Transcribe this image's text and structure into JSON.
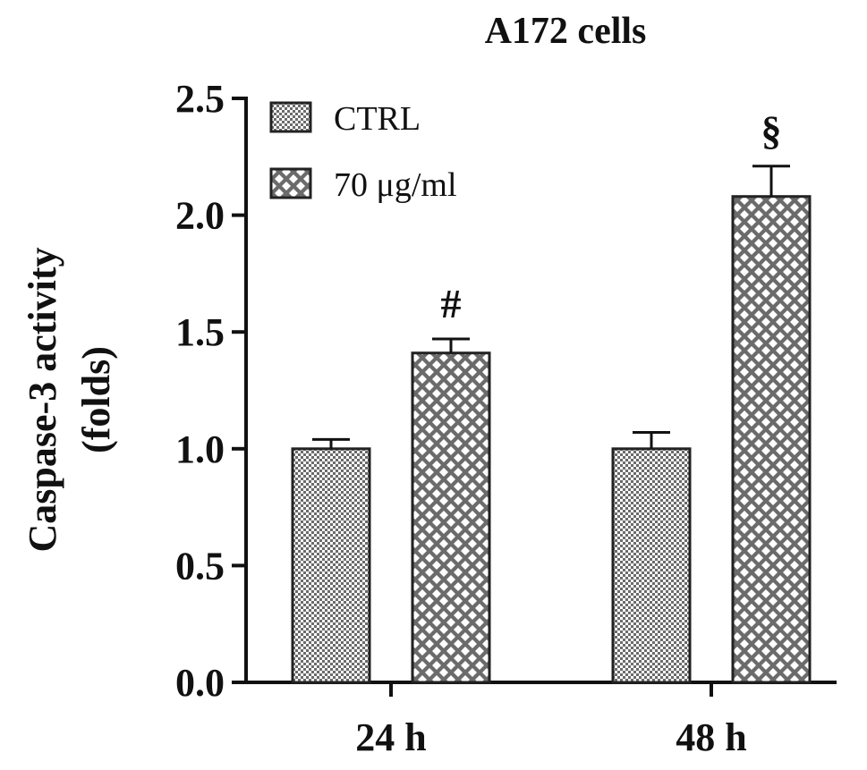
{
  "chart_data": {
    "type": "bar",
    "title": "A172 cells",
    "xlabel": "",
    "ylabel_lines": [
      "Caspase-3 activity",
      "(folds)"
    ],
    "categories": [
      "24 h",
      "48 h"
    ],
    "ylim": [
      0,
      2.5
    ],
    "yticks": [
      "0.0",
      "0.5",
      "1.0",
      "1.5",
      "2.0",
      "2.5"
    ],
    "series": [
      {
        "name": "CTRL",
        "pattern": "fine-checker",
        "values": [
          1.0,
          1.0
        ],
        "errors": [
          0.04,
          0.07
        ],
        "annotations": [
          "",
          ""
        ]
      },
      {
        "name": "70 μg/ml",
        "pattern": "diamond-lattice",
        "values": [
          1.41,
          2.08
        ],
        "errors": [
          0.06,
          0.13
        ],
        "annotations": [
          "#",
          "§"
        ]
      }
    ],
    "legend_position": "top-left",
    "grid": false,
    "colors": {
      "axis": "#111111",
      "bar_fill": "#6b6b6b",
      "bar_edge": "#222222"
    }
  }
}
